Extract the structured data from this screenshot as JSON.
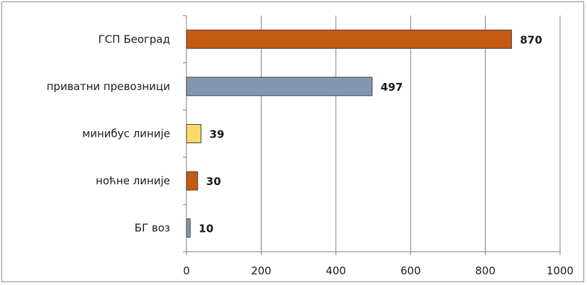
{
  "chart_data": {
    "type": "bar",
    "orientation": "horizontal",
    "categories": [
      "ГСП Београд",
      "приватни превозници",
      "минибус линије",
      "ноћне линије",
      "БГ воз"
    ],
    "values": [
      870,
      497,
      39,
      30,
      10
    ],
    "data_labels": [
      "870",
      "497",
      "39",
      "30",
      "10"
    ],
    "bar_colors": [
      "#c55a11",
      "#8497b0",
      "#ffd966",
      "#c55a11",
      "#8497b0"
    ],
    "xlim": [
      0,
      1000
    ],
    "x_ticks": [
      0,
      200,
      400,
      600,
      800,
      1000
    ],
    "x_tick_labels": [
      "0",
      "200",
      "400",
      "600",
      "800",
      "1000"
    ],
    "grid": "vertical-major",
    "legend": "none",
    "title": "",
    "xlabel": "",
    "ylabel": ""
  }
}
